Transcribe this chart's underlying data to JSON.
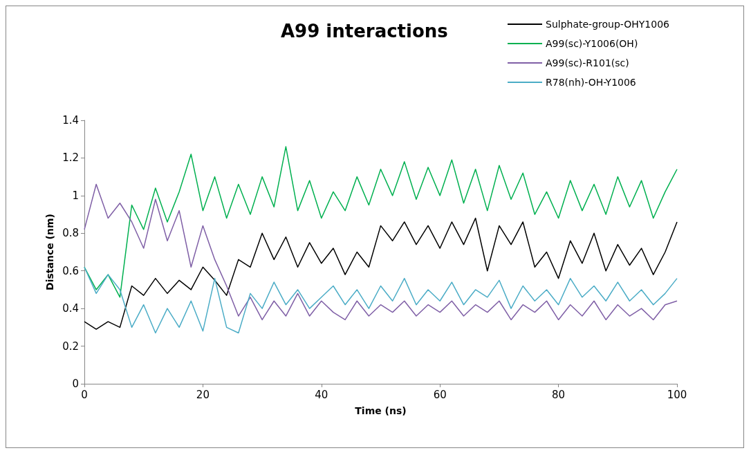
{
  "chart_data": {
    "type": "line",
    "title": "A99 interactions",
    "xlabel": "Time (ns)",
    "ylabel": "Distance (nm)",
    "x": [
      0,
      2,
      4,
      6,
      8,
      10,
      12,
      14,
      16,
      18,
      20,
      22,
      24,
      26,
      28,
      30,
      32,
      34,
      36,
      38,
      40,
      42,
      44,
      46,
      48,
      50,
      52,
      54,
      56,
      58,
      60,
      62,
      64,
      66,
      68,
      70,
      72,
      74,
      76,
      78,
      80,
      82,
      84,
      86,
      88,
      90,
      92,
      94,
      96,
      98,
      100
    ],
    "series": [
      {
        "name": "Sulphate-group-OHY1006",
        "color": "#000000",
        "values": [
          0.33,
          0.29,
          0.33,
          0.3,
          0.52,
          0.47,
          0.56,
          0.48,
          0.55,
          0.5,
          0.62,
          0.55,
          0.47,
          0.66,
          0.62,
          0.8,
          0.66,
          0.78,
          0.62,
          0.75,
          0.64,
          0.72,
          0.58,
          0.7,
          0.62,
          0.84,
          0.76,
          0.86,
          0.74,
          0.84,
          0.72,
          0.86,
          0.74,
          0.88,
          0.6,
          0.84,
          0.74,
          0.86,
          0.62,
          0.7,
          0.56,
          0.76,
          0.64,
          0.8,
          0.6,
          0.74,
          0.63,
          0.72,
          0.58,
          0.7,
          0.86
        ]
      },
      {
        "name": "A99(sc)-Y1006(OH)",
        "color": "#00b050",
        "values": [
          0.62,
          0.5,
          0.58,
          0.46,
          0.95,
          0.82,
          1.04,
          0.86,
          1.02,
          1.22,
          0.92,
          1.1,
          0.88,
          1.06,
          0.9,
          1.1,
          0.94,
          1.26,
          0.92,
          1.08,
          0.88,
          1.02,
          0.92,
          1.1,
          0.95,
          1.14,
          1.0,
          1.18,
          0.98,
          1.15,
          1.0,
          1.19,
          0.96,
          1.14,
          0.92,
          1.16,
          0.98,
          1.12,
          0.9,
          1.02,
          0.88,
          1.08,
          0.92,
          1.06,
          0.9,
          1.1,
          0.94,
          1.08,
          0.88,
          1.02,
          1.14
        ]
      },
      {
        "name": "A99(sc)-R101(sc)",
        "color": "#7f5fa6",
        "values": [
          0.82,
          1.06,
          0.88,
          0.96,
          0.86,
          0.72,
          0.98,
          0.76,
          0.92,
          0.62,
          0.84,
          0.66,
          0.52,
          0.36,
          0.46,
          0.34,
          0.44,
          0.36,
          0.48,
          0.36,
          0.44,
          0.38,
          0.34,
          0.44,
          0.36,
          0.42,
          0.38,
          0.44,
          0.36,
          0.42,
          0.38,
          0.44,
          0.36,
          0.42,
          0.38,
          0.44,
          0.34,
          0.42,
          0.38,
          0.44,
          0.34,
          0.42,
          0.36,
          0.44,
          0.34,
          0.42,
          0.36,
          0.4,
          0.34,
          0.42,
          0.44
        ]
      },
      {
        "name": "R78(nh)-OH-Y1006",
        "color": "#4bacc6",
        "values": [
          0.62,
          0.48,
          0.58,
          0.5,
          0.3,
          0.42,
          0.27,
          0.4,
          0.3,
          0.44,
          0.28,
          0.56,
          0.3,
          0.27,
          0.48,
          0.4,
          0.54,
          0.42,
          0.5,
          0.4,
          0.46,
          0.52,
          0.42,
          0.5,
          0.4,
          0.52,
          0.44,
          0.56,
          0.42,
          0.5,
          0.44,
          0.54,
          0.42,
          0.5,
          0.46,
          0.55,
          0.4,
          0.52,
          0.44,
          0.5,
          0.42,
          0.56,
          0.46,
          0.52,
          0.44,
          0.54,
          0.44,
          0.5,
          0.42,
          0.48,
          0.56
        ]
      }
    ],
    "xlim": [
      0,
      100
    ],
    "xticks": [
      0,
      20,
      40,
      60,
      80,
      100
    ],
    "ylim": [
      0,
      1.4
    ],
    "yticks": [
      0,
      0.2,
      0.4,
      0.6,
      0.8,
      1,
      1.2,
      1.4
    ],
    "legend": "top right",
    "marker": "none",
    "line_style": "solid",
    "grid": false
  }
}
